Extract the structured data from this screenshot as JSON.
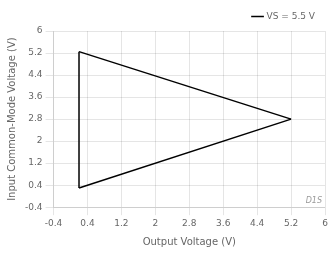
{
  "chart_data": {
    "type": "line",
    "xlabel": "Output Voltage (V)",
    "ylabel": "Input Common-Mode Voltage (V)",
    "series": [
      {
        "name": "VS = 5.5 V",
        "color": "#000000",
        "x": [
          0.2,
          5.2
        ],
        "values": [
          5.25,
          2.8
        ]
      },
      {
        "color": "#000000",
        "x": [
          0.2,
          5.2
        ],
        "values": [
          0.3,
          2.8
        ]
      },
      {
        "color": "#000000",
        "x": [
          0.2,
          0.2
        ],
        "values": [
          5.25,
          0.3
        ]
      }
    ],
    "xlim": [
      -0.4,
      6
    ],
    "ylim": [
      -0.4,
      6
    ],
    "xticks": [
      -0.4,
      0.4,
      1.2,
      2,
      2.8,
      3.6,
      4.4,
      5.2,
      6
    ],
    "yticks": [
      -0.4,
      0.4,
      1.2,
      2,
      2.8,
      3.6,
      4.4,
      5.2,
      6
    ],
    "grid": true,
    "legend": "upper right",
    "annotations": [
      {
        "text": "D1S"
      }
    ]
  }
}
